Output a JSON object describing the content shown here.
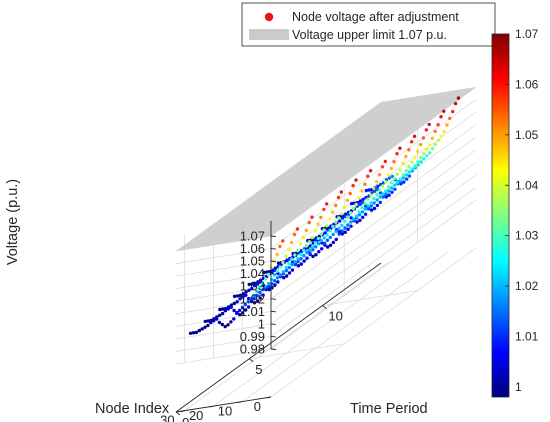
{
  "chart_data": {
    "type": "scatter3d",
    "zlabel": "Voltage (p.u.)",
    "xlabel": "Node Index",
    "ylabel": "Time Period",
    "zlim": [
      0.98,
      1.07
    ],
    "xlim": [
      0,
      33
    ],
    "ylim": [
      0,
      14
    ],
    "grid": true,
    "legend_position": "top",
    "z_ticks": [
      "1.07",
      "1.06",
      "1.05",
      "1.04",
      "1.03",
      "1.02",
      "1.01",
      "1",
      "0.99",
      "0.98"
    ],
    "x_ticks": [
      "0",
      "10",
      "20",
      "30"
    ],
    "y_ticks": [
      "0",
      "5",
      "10"
    ],
    "colorbar": {
      "ticks": [
        "1.07",
        "1.06",
        "1.05",
        "1.04",
        "1.03",
        "1.02",
        "1.01",
        "1"
      ],
      "range": [
        0.998,
        1.07
      ],
      "colormap": "jet"
    },
    "legend": [
      {
        "label": "Node voltage after adjustment",
        "marker": "dot",
        "color": "#e8141b"
      },
      {
        "label": "Voltage upper limit 1.07 p.u.",
        "marker": "patch",
        "color": "#cbcbcb"
      }
    ],
    "plane": {
      "name": "Voltage upper limit 1.07 p.u.",
      "z": 1.07,
      "color": "#c8c8c8",
      "opacity": 0.88
    },
    "series": [
      {
        "name": "Node voltage after adjustment",
        "nodes": [
          1,
          2,
          3,
          4,
          5,
          6,
          7,
          8,
          9,
          10,
          11,
          12,
          13,
          14,
          15,
          16,
          17,
          18,
          19,
          20,
          21,
          22,
          23,
          24,
          25,
          26,
          27,
          28,
          29,
          30,
          31,
          32,
          33
        ],
        "periods": [
          1,
          2,
          3,
          4,
          5,
          6,
          7,
          8,
          9,
          10,
          11,
          12,
          13
        ],
        "voltage_profile": [
          1.062,
          1.058,
          1.052,
          1.047,
          1.042,
          1.037,
          1.034,
          1.031,
          1.028,
          1.025,
          1.022,
          1.02,
          1.018,
          1.016,
          1.014,
          1.012,
          1.01,
          1.006,
          1.004,
          1.002,
          1.001,
          1.003,
          1.005,
          1.008,
          1.007,
          1.006,
          1.004,
          1.003,
          1.002,
          1.001,
          1.0,
          1.0,
          1.0
        ],
        "period_offset": [
          -0.004,
          -0.003,
          -0.002,
          0.0,
          0.001,
          0.002,
          0.001,
          0.0,
          0.002,
          0.003,
          0.004,
          0.006,
          0.008
        ]
      }
    ]
  }
}
